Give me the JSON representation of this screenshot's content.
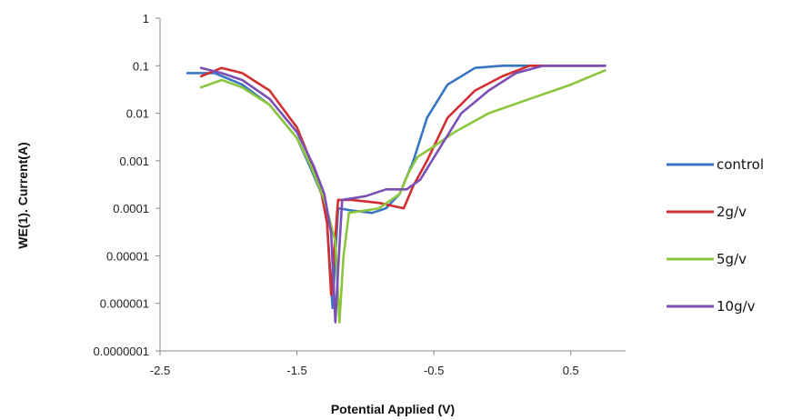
{
  "chart_data": {
    "type": "line",
    "title": "",
    "xlabel": "Potential Applied (V)",
    "ylabel": "WE(1). Current(A)",
    "xlim": [
      -2.5,
      0.9
    ],
    "ylim": [
      1e-07,
      1
    ],
    "yscale": "log",
    "grid": false,
    "legend_position": "right",
    "x_ticks": [
      {
        "value": -2.5,
        "label": "-2.5"
      },
      {
        "value": -1.5,
        "label": "-1.5"
      },
      {
        "value": -0.5,
        "label": "-0.5"
      },
      {
        "value": 0.5,
        "label": "0.5"
      }
    ],
    "y_ticks": [
      {
        "value": 1,
        "label": "1"
      },
      {
        "value": 0.1,
        "label": "0.1"
      },
      {
        "value": 0.01,
        "label": "0.01"
      },
      {
        "value": 0.001,
        "label": "0.001"
      },
      {
        "value": 0.0001,
        "label": "0.0001"
      },
      {
        "value": 1e-05,
        "label": "0.00001"
      },
      {
        "value": 1e-06,
        "label": "0.000001"
      },
      {
        "value": 1e-07,
        "label": "0.0000001"
      }
    ],
    "series": [
      {
        "name": "control",
        "color": "#3a75c4",
        "points": [
          [
            -2.3,
            0.07
          ],
          [
            -2.1,
            0.07
          ],
          [
            -1.9,
            0.04
          ],
          [
            -1.7,
            0.015
          ],
          [
            -1.5,
            0.003
          ],
          [
            -1.4,
            0.0007
          ],
          [
            -1.32,
            0.0002
          ],
          [
            -1.28,
            5e-05
          ],
          [
            -1.24,
            8e-07
          ],
          [
            -1.22,
            1e-05
          ],
          [
            -1.2,
            0.0001
          ],
          [
            -1.1,
            9e-05
          ],
          [
            -0.95,
            8e-05
          ],
          [
            -0.85,
            0.0001
          ],
          [
            -0.75,
            0.0002
          ],
          [
            -0.65,
            0.001
          ],
          [
            -0.55,
            0.008
          ],
          [
            -0.4,
            0.04
          ],
          [
            -0.2,
            0.09
          ],
          [
            0,
            0.1
          ],
          [
            0.3,
            0.1
          ],
          [
            0.75,
            0.1
          ]
        ]
      },
      {
        "name": "2g/v",
        "color": "#d03030",
        "points": [
          [
            -2.2,
            0.06
          ],
          [
            -2.05,
            0.09
          ],
          [
            -1.9,
            0.07
          ],
          [
            -1.7,
            0.03
          ],
          [
            -1.5,
            0.005
          ],
          [
            -1.4,
            0.001
          ],
          [
            -1.32,
            0.0002
          ],
          [
            -1.28,
            5e-05
          ],
          [
            -1.25,
            1.5e-06
          ],
          [
            -1.23,
            1e-05
          ],
          [
            -1.2,
            0.00015
          ],
          [
            -1.1,
            0.00015
          ],
          [
            -0.9,
            0.00013
          ],
          [
            -0.72,
            0.0001
          ],
          [
            -0.65,
            0.0003
          ],
          [
            -0.55,
            0.001
          ],
          [
            -0.4,
            0.008
          ],
          [
            -0.2,
            0.03
          ],
          [
            0,
            0.06
          ],
          [
            0.2,
            0.1
          ],
          [
            0.75,
            0.1
          ]
        ]
      },
      {
        "name": "5g/v",
        "color": "#8cc63f",
        "points": [
          [
            -2.2,
            0.035
          ],
          [
            -2.05,
            0.05
          ],
          [
            -1.9,
            0.035
          ],
          [
            -1.7,
            0.015
          ],
          [
            -1.5,
            0.003
          ],
          [
            -1.4,
            0.0008
          ],
          [
            -1.3,
            0.00015
          ],
          [
            -1.22,
            2e-05
          ],
          [
            -1.19,
            4e-07
          ],
          [
            -1.16,
            1e-05
          ],
          [
            -1.12,
            8e-05
          ],
          [
            -1.0,
            9e-05
          ],
          [
            -0.9,
            0.0001
          ],
          [
            -0.75,
            0.0002
          ],
          [
            -0.68,
            0.0006
          ],
          [
            -0.62,
            0.0012
          ],
          [
            -0.5,
            0.002
          ],
          [
            -0.35,
            0.004
          ],
          [
            -0.1,
            0.01
          ],
          [
            0.2,
            0.02
          ],
          [
            0.5,
            0.04
          ],
          [
            0.75,
            0.08
          ]
        ]
      },
      {
        "name": "10g/v",
        "color": "#7b4fb3",
        "points": [
          [
            -2.2,
            0.09
          ],
          [
            -2.05,
            0.07
          ],
          [
            -1.9,
            0.05
          ],
          [
            -1.7,
            0.02
          ],
          [
            -1.5,
            0.004
          ],
          [
            -1.38,
            0.0008
          ],
          [
            -1.3,
            0.0002
          ],
          [
            -1.25,
            3e-05
          ],
          [
            -1.22,
            4e-07
          ],
          [
            -1.2,
            5e-06
          ],
          [
            -1.17,
            0.00015
          ],
          [
            -1.0,
            0.00018
          ],
          [
            -0.85,
            0.00025
          ],
          [
            -0.7,
            0.00025
          ],
          [
            -0.6,
            0.0004
          ],
          [
            -0.45,
            0.002
          ],
          [
            -0.3,
            0.01
          ],
          [
            -0.1,
            0.03
          ],
          [
            0.1,
            0.07
          ],
          [
            0.3,
            0.1
          ],
          [
            0.75,
            0.1
          ]
        ]
      }
    ]
  }
}
